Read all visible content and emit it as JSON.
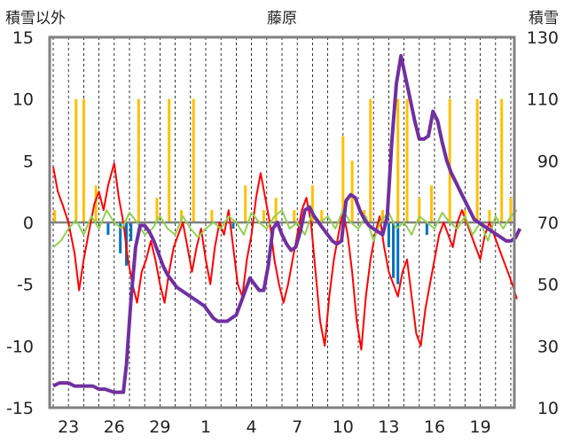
{
  "chart_data": {
    "type": "line",
    "title": "藤原",
    "ylabel_left": "積雪以外",
    "ylabel_right": "積雪",
    "y_left_lim": [
      -15,
      15
    ],
    "y_left_ticks": [
      "15",
      "10",
      "5",
      "0",
      "-5",
      "-10",
      "-15"
    ],
    "y_right_lim": [
      10,
      130
    ],
    "y_right_ticks": [
      "130",
      "110",
      "90",
      "70",
      "50",
      "30",
      "10"
    ],
    "x_ticks": [
      "23",
      "26",
      "29",
      "1",
      "4",
      "7",
      "10",
      "13",
      "16",
      "19"
    ],
    "x_tick_index": [
      1,
      4,
      7,
      10,
      13,
      16,
      19,
      22,
      25,
      28
    ],
    "x_day_count": 31,
    "grid": "vertical-dashed",
    "colors": {
      "snow_depth": "#7030a0",
      "temperature": "#ff0000",
      "temp_anomaly": "#92d050",
      "precip_yellow": "#ffc000",
      "precip_blue": "#0070c0",
      "frame": "#808080",
      "zero_line": "#808080"
    },
    "series": [
      {
        "key": "temperature",
        "axis": "left",
        "points": [
          [
            0,
            4.5
          ],
          [
            0.3,
            2.5
          ],
          [
            0.6,
            1.5
          ],
          [
            1,
            0
          ],
          [
            1.4,
            -2.5
          ],
          [
            1.7,
            -5.5
          ],
          [
            2,
            -3
          ],
          [
            2.3,
            -1
          ],
          [
            2.7,
            1.5
          ],
          [
            3,
            2.5
          ],
          [
            3.3,
            1
          ],
          [
            3.6,
            3
          ],
          [
            4,
            4.8
          ],
          [
            4.3,
            2
          ],
          [
            4.6,
            0
          ],
          [
            4.9,
            -3
          ],
          [
            5.2,
            -5
          ],
          [
            5.5,
            -6.5
          ],
          [
            5.8,
            -4
          ],
          [
            6.1,
            -3
          ],
          [
            6.4,
            -1.5
          ],
          [
            6.7,
            -3
          ],
          [
            7,
            -5
          ],
          [
            7.3,
            -6.5
          ],
          [
            7.6,
            -4
          ],
          [
            7.9,
            -2
          ],
          [
            8.2,
            -1
          ],
          [
            8.5,
            0
          ],
          [
            8.8,
            -2
          ],
          [
            9.1,
            -4
          ],
          [
            9.4,
            -2
          ],
          [
            9.7,
            -0.5
          ],
          [
            10,
            -3
          ],
          [
            10.3,
            -5
          ],
          [
            10.6,
            -2
          ],
          [
            10.9,
            0
          ],
          [
            11.2,
            -1
          ],
          [
            11.5,
            1
          ],
          [
            11.8,
            -2
          ],
          [
            12.1,
            -5
          ],
          [
            12.4,
            -6
          ],
          [
            12.7,
            -3
          ],
          [
            13,
            -1
          ],
          [
            13.3,
            2
          ],
          [
            13.6,
            4
          ],
          [
            13.9,
            2
          ],
          [
            14.2,
            0
          ],
          [
            14.5,
            -3
          ],
          [
            14.8,
            -5
          ],
          [
            15.1,
            -6.5
          ],
          [
            15.4,
            -5
          ],
          [
            15.7,
            -3
          ],
          [
            16,
            -1
          ],
          [
            16.3,
            1
          ],
          [
            16.6,
            2
          ],
          [
            16.9,
            0
          ],
          [
            17.2,
            -4
          ],
          [
            17.5,
            -8
          ],
          [
            17.8,
            -10
          ],
          [
            18.1,
            -6
          ],
          [
            18.4,
            -3
          ],
          [
            18.7,
            -1
          ],
          [
            19,
            1
          ],
          [
            19.3,
            -1
          ],
          [
            19.6,
            -4
          ],
          [
            19.9,
            -8
          ],
          [
            20.2,
            -10.3
          ],
          [
            20.5,
            -6
          ],
          [
            20.8,
            -3
          ],
          [
            21.1,
            -1
          ],
          [
            21.4,
            0.5
          ],
          [
            21.7,
            -2
          ],
          [
            22,
            -4
          ],
          [
            22.3,
            -5
          ],
          [
            22.6,
            -6
          ],
          [
            22.9,
            -4
          ],
          [
            23.2,
            -3
          ],
          [
            23.5,
            -6
          ],
          [
            23.8,
            -9
          ],
          [
            24.1,
            -10
          ],
          [
            24.4,
            -7
          ],
          [
            24.7,
            -5
          ],
          [
            25,
            -3
          ],
          [
            25.3,
            -1
          ],
          [
            25.6,
            0
          ],
          [
            25.9,
            -1
          ],
          [
            26.2,
            -2
          ],
          [
            26.5,
            0
          ],
          [
            26.8,
            1
          ],
          [
            27.1,
            0
          ],
          [
            27.4,
            -1
          ],
          [
            27.7,
            -2
          ],
          [
            28,
            -3
          ],
          [
            28.3,
            -1
          ],
          [
            28.6,
            0
          ],
          [
            28.9,
            -1
          ],
          [
            29.2,
            -2
          ],
          [
            29.5,
            -3
          ],
          [
            29.8,
            -4
          ],
          [
            30.1,
            -5
          ],
          [
            30.4,
            -6.2
          ]
        ]
      },
      {
        "key": "temp_anomaly",
        "axis": "left",
        "points": [
          [
            0,
            -2
          ],
          [
            0.5,
            -1.5
          ],
          [
            1,
            -0.5
          ],
          [
            1.5,
            0.2
          ],
          [
            2,
            -1
          ],
          [
            2.5,
            0.5
          ],
          [
            3,
            -0.5
          ],
          [
            3.5,
            1
          ],
          [
            4,
            0
          ],
          [
            4.5,
            -0.5
          ],
          [
            5,
            0.8
          ],
          [
            5.5,
            0
          ],
          [
            6,
            -1
          ],
          [
            6.5,
            -0.5
          ],
          [
            7,
            0.5
          ],
          [
            7.5,
            -0.5
          ],
          [
            8,
            -1
          ],
          [
            8.5,
            0.5
          ],
          [
            9,
            -0.5
          ],
          [
            9.5,
            -1.2
          ],
          [
            10,
            -0.5
          ],
          [
            10.5,
            0
          ],
          [
            11,
            -0.5
          ],
          [
            11.5,
            0.5
          ],
          [
            12,
            0
          ],
          [
            12.5,
            -1
          ],
          [
            13,
            0.8
          ],
          [
            13.5,
            0
          ],
          [
            14,
            -0.5
          ],
          [
            14.5,
            0.5
          ],
          [
            15,
            1
          ],
          [
            15.5,
            -0.5
          ],
          [
            16,
            0
          ],
          [
            16.5,
            -1
          ],
          [
            17,
            0.8
          ],
          [
            17.5,
            0
          ],
          [
            18,
            0.5
          ],
          [
            18.5,
            -0.5
          ],
          [
            19,
            1
          ],
          [
            19.5,
            0
          ],
          [
            20,
            -0.5
          ],
          [
            20.5,
            0.5
          ],
          [
            21,
            -1.5
          ],
          [
            21.5,
            0.2
          ],
          [
            22,
            0.8
          ],
          [
            22.5,
            -0.5
          ],
          [
            23,
            0
          ],
          [
            23.5,
            -1
          ],
          [
            24,
            0.5
          ],
          [
            24.5,
            0
          ],
          [
            25,
            -0.5
          ],
          [
            25.5,
            0.8
          ],
          [
            26,
            0
          ],
          [
            26.5,
            -0.5
          ],
          [
            27,
            0.5
          ],
          [
            27.5,
            -1
          ],
          [
            28,
            0
          ],
          [
            28.5,
            -1.5
          ],
          [
            29,
            0.5
          ],
          [
            29.5,
            -0.5
          ],
          [
            30,
            0.5
          ],
          [
            30.4,
            1
          ]
        ]
      },
      {
        "key": "snow_depth",
        "axis": "right",
        "points": [
          [
            0,
            17
          ],
          [
            0.4,
            18
          ],
          [
            1,
            18
          ],
          [
            1.4,
            17
          ],
          [
            2,
            17
          ],
          [
            2.6,
            17
          ],
          [
            3,
            16
          ],
          [
            3.4,
            16
          ],
          [
            4,
            15
          ],
          [
            4.6,
            15
          ],
          [
            4.8,
            24
          ],
          [
            5.1,
            45
          ],
          [
            5.4,
            62
          ],
          [
            5.7,
            69
          ],
          [
            6,
            69
          ],
          [
            6.3,
            67
          ],
          [
            6.6,
            64
          ],
          [
            6.9,
            60
          ],
          [
            7.2,
            56
          ],
          [
            7.5,
            53
          ],
          [
            7.8,
            51
          ],
          [
            8.1,
            49
          ],
          [
            8.4,
            48
          ],
          [
            8.7,
            47
          ],
          [
            9,
            46
          ],
          [
            9.3,
            45
          ],
          [
            9.6,
            44
          ],
          [
            9.9,
            43
          ],
          [
            10.2,
            41
          ],
          [
            10.5,
            39
          ],
          [
            10.8,
            38
          ],
          [
            11.1,
            38
          ],
          [
            11.4,
            38
          ],
          [
            11.7,
            39
          ],
          [
            12,
            40
          ],
          [
            12.3,
            44
          ],
          [
            12.6,
            48
          ],
          [
            12.9,
            52
          ],
          [
            13.2,
            50
          ],
          [
            13.5,
            48
          ],
          [
            13.8,
            48
          ],
          [
            14.1,
            56
          ],
          [
            14.4,
            68
          ],
          [
            14.7,
            70
          ],
          [
            15,
            66
          ],
          [
            15.3,
            63
          ],
          [
            15.6,
            61
          ],
          [
            15.9,
            62
          ],
          [
            16.2,
            67
          ],
          [
            16.5,
            74
          ],
          [
            16.8,
            75
          ],
          [
            17.1,
            72
          ],
          [
            17.4,
            70
          ],
          [
            17.7,
            68
          ],
          [
            18,
            66
          ],
          [
            18.3,
            64
          ],
          [
            18.6,
            63
          ],
          [
            18.9,
            64
          ],
          [
            19.2,
            77
          ],
          [
            19.5,
            79
          ],
          [
            19.8,
            78
          ],
          [
            20.1,
            74
          ],
          [
            20.4,
            71
          ],
          [
            20.7,
            69
          ],
          [
            21,
            68
          ],
          [
            21.3,
            67
          ],
          [
            21.6,
            66
          ],
          [
            21.9,
            72
          ],
          [
            22.2,
            96
          ],
          [
            22.5,
            115
          ],
          [
            22.8,
            124
          ],
          [
            23.1,
            117
          ],
          [
            23.4,
            110
          ],
          [
            23.7,
            103
          ],
          [
            24,
            97
          ],
          [
            24.3,
            97
          ],
          [
            24.6,
            98
          ],
          [
            24.9,
            106
          ],
          [
            25.2,
            103
          ],
          [
            25.5,
            96
          ],
          [
            25.8,
            90
          ],
          [
            26.1,
            86
          ],
          [
            26.4,
            83
          ],
          [
            26.7,
            80
          ],
          [
            27,
            77
          ],
          [
            27.3,
            74
          ],
          [
            27.6,
            71
          ],
          [
            27.9,
            70
          ],
          [
            28.2,
            69
          ],
          [
            28.5,
            68
          ],
          [
            28.8,
            67
          ],
          [
            29.1,
            66
          ],
          [
            29.4,
            65
          ],
          [
            29.7,
            64
          ],
          [
            30,
            64
          ],
          [
            30.3,
            65
          ],
          [
            30.6,
            68
          ]
        ]
      }
    ],
    "bars": [
      {
        "key": "precip_yellow",
        "axis": "left",
        "values": [
          [
            0.1,
            1
          ],
          [
            1.5,
            10
          ],
          [
            2,
            10
          ],
          [
            2.8,
            3
          ],
          [
            5.6,
            10
          ],
          [
            6.8,
            2
          ],
          [
            7.6,
            10
          ],
          [
            8.4,
            1
          ],
          [
            9.2,
            10
          ],
          [
            10.4,
            1
          ],
          [
            12.6,
            3
          ],
          [
            13.8,
            1
          ],
          [
            14.6,
            2
          ],
          [
            15.8,
            1
          ],
          [
            17,
            3
          ],
          [
            17.6,
            1
          ],
          [
            19,
            7
          ],
          [
            19.6,
            5
          ],
          [
            20.4,
            1
          ],
          [
            20.8,
            10
          ],
          [
            21.6,
            1
          ],
          [
            22.6,
            10
          ],
          [
            23.2,
            10
          ],
          [
            24,
            2
          ],
          [
            24.8,
            3
          ],
          [
            26,
            10
          ],
          [
            27,
            1
          ],
          [
            27.8,
            10
          ],
          [
            28.6,
            1
          ],
          [
            29.4,
            10
          ],
          [
            30,
            2
          ]
        ]
      },
      {
        "key": "precip_blue",
        "axis": "left",
        "values": [
          [
            3.6,
            -1
          ],
          [
            4.4,
            -2.5
          ],
          [
            4.8,
            -3.5
          ],
          [
            5.1,
            -1.5
          ],
          [
            11.8,
            -0.5
          ],
          [
            22,
            -2
          ],
          [
            22.3,
            -4.5
          ],
          [
            22.6,
            -5
          ],
          [
            24.5,
            -1
          ]
        ]
      }
    ]
  }
}
